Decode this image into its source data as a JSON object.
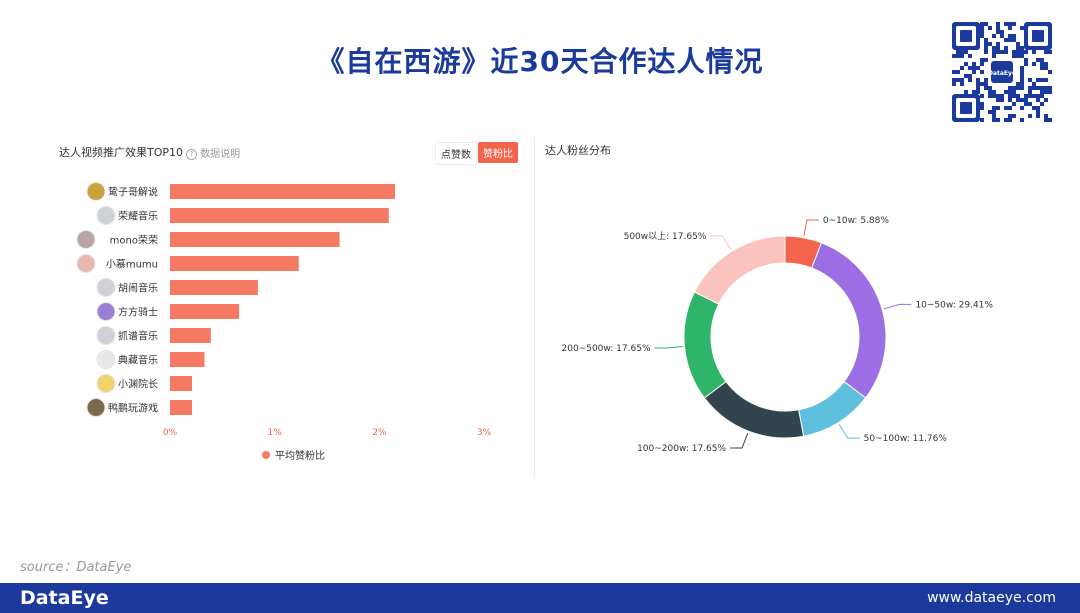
{
  "page": {
    "title": "《自在西游》近30天合作达人情况",
    "source": "source：DataEye",
    "footer_logo": "DataEye",
    "footer_url": "www.dataeye.com",
    "qr_badge": "DataEye"
  },
  "left_panel": {
    "title": "达人视频推广效果TOP10",
    "hint": "数据说明",
    "toggle_a": "点赞数",
    "toggle_b": "赞粉比"
  },
  "right_panel": {
    "title": "达人粉丝分布"
  },
  "chart_data": [
    {
      "type": "bar",
      "orientation": "horizontal",
      "categories": [
        "鸷子哥解说",
        "荣耀音乐",
        "mono荣荣",
        "小慕mumu",
        "胡闹音乐",
        "方方骑士",
        "抓谱音乐",
        "典藏音乐",
        "小渊院长",
        "鸭鹏玩游戏"
      ],
      "series": [
        {
          "name": "平均赞粉比",
          "values": [
            2.15,
            2.09,
            1.62,
            1.23,
            0.84,
            0.66,
            0.39,
            0.33,
            0.21,
            0.21
          ],
          "color": "#f47a63"
        }
      ],
      "x_ticks": [
        "0%",
        "1%",
        "2%",
        "3%"
      ],
      "xlim": [
        0,
        3
      ],
      "legend": "bottom"
    },
    {
      "type": "pie",
      "donut": true,
      "slices": [
        {
          "label": "0~10w: 5.88%",
          "value": 5.88,
          "color": "#f4634b"
        },
        {
          "label": "10~50w: 29.41%",
          "value": 29.41,
          "color": "#9b6fe3"
        },
        {
          "label": "50~100w: 11.76%",
          "value": 11.76,
          "color": "#5ec0dd"
        },
        {
          "label": "100~200w: 17.65%",
          "value": 17.65,
          "color": "#33444f"
        },
        {
          "label": "200~500w: 17.65%",
          "value": 17.65,
          "color": "#2fb56a"
        },
        {
          "label": "500w以上: 17.65%",
          "value": 17.65,
          "color": "#fbc3bd"
        }
      ]
    }
  ]
}
